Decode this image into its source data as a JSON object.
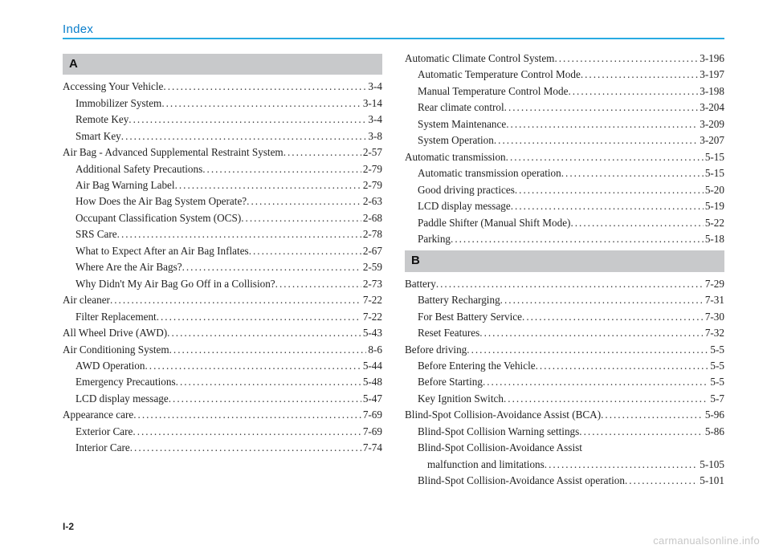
{
  "header": {
    "title": "Index"
  },
  "footer": {
    "page": "I-2"
  },
  "watermark": "carmanualsonline.info",
  "colors": {
    "accent": "#29abe2",
    "header_text": "#0a7ecb",
    "bar_bg": "#c8c9cb",
    "text": "#222222",
    "watermark": "#c7c7c7",
    "background": "#ffffff"
  },
  "sections": {
    "A": {
      "letter": "A",
      "groups": [
        {
          "main": {
            "label": "Accessing Your Vehicle ",
            "pg": "3-4"
          },
          "subs": [
            {
              "label": "Immobilizer System  ",
              "pg": "3-14"
            },
            {
              "label": "Remote Key ",
              "pg": "3-4"
            },
            {
              "label": "Smart Key ",
              "pg": "3-8"
            }
          ]
        },
        {
          "main": {
            "label": "Air Bag - Advanced Supplemental Restraint System",
            "pg": "2-57"
          },
          "subs": [
            {
              "label": "Additional Safety Precautions ",
              "pg": "2-79"
            },
            {
              "label": "Air Bag Warning Label ",
              "pg": "2-79"
            },
            {
              "label": "How Does the Air Bag System Operate? ",
              "pg": "2-63"
            },
            {
              "label": "Occupant Classification System (OCS) ",
              "pg": "2-68"
            },
            {
              "label": "SRS Care ",
              "pg": "2-78"
            },
            {
              "label": "What to Expect After an Air Bag Inflates ",
              "pg": "2-67"
            },
            {
              "label": "Where Are the Air Bags? ",
              "pg": "2-59"
            },
            {
              "label": "Why Didn't My Air Bag Go Off in a Collision? ",
              "pg": "2-73"
            }
          ]
        },
        {
          "main": {
            "label": "Air cleaner",
            "pg": "7-22"
          },
          "subs": [
            {
              "label": "Filter Replacement ",
              "pg": "7-22"
            }
          ]
        },
        {
          "main": {
            "label": "All Wheel Drive (AWD) ",
            "pg": "5-43"
          },
          "subs": []
        },
        {
          "main": {
            "label": "Air Conditioning System ",
            "pg": "8-6"
          },
          "subs": [
            {
              "label": "AWD Operation",
              "pg": "5-44"
            },
            {
              "label": "Emergency Precautions ",
              "pg": "5-48"
            },
            {
              "label": "LCD display message ",
              "pg": "5-47"
            }
          ]
        },
        {
          "main": {
            "label": "Appearance care",
            "pg": "7-69"
          },
          "subs": [
            {
              "label": "Exterior Care ",
              "pg": "7-69"
            },
            {
              "label": "Interior Care ",
              "pg": "7-74"
            }
          ]
        }
      ]
    },
    "A_right": {
      "groups": [
        {
          "main": {
            "label": "Automatic Climate Control System ",
            "pg": "3-196"
          },
          "subs": [
            {
              "label": "Automatic Temperature Control Mode ",
              "pg": "3-197"
            },
            {
              "label": "Manual Temperature Control Mode ",
              "pg": "3-198"
            },
            {
              "label": "Rear climate control ",
              "pg": "3-204"
            },
            {
              "label": "System Maintenance ",
              "pg": "3-209"
            },
            {
              "label": "System Operation ",
              "pg": "3-207"
            }
          ]
        },
        {
          "main": {
            "label": "Automatic transmission ",
            "pg": "5-15"
          },
          "subs": [
            {
              "label": "Automatic transmission operation  ",
              "pg": "5-15"
            },
            {
              "label": "Good driving practices  ",
              "pg": "5-20"
            },
            {
              "label": "LCD display message ",
              "pg": "5-19"
            },
            {
              "label": "Paddle Shifter (Manual Shift Mode)",
              "pg": "5-22"
            },
            {
              "label": "Parking",
              "pg": "5-18"
            }
          ]
        }
      ]
    },
    "B": {
      "letter": "B",
      "groups": [
        {
          "main": {
            "label": "Battery ",
            "pg": "7-29"
          },
          "subs": [
            {
              "label": "Battery Recharging ",
              "pg": "7-31"
            },
            {
              "label": "For Best Battery Service ",
              "pg": "7-30"
            },
            {
              "label": "Reset Features ",
              "pg": "7-32"
            }
          ]
        },
        {
          "main": {
            "label": "Before driving ",
            "pg": "5-5"
          },
          "subs": [
            {
              "label": "Before Entering the Vehicle ",
              "pg": "5-5"
            },
            {
              "label": "Before Starting ",
              "pg": "5-5"
            },
            {
              "label": "Key Ignition Switch ",
              "pg": "5-7"
            }
          ]
        },
        {
          "main": {
            "label": "Blind-Spot Collision-Avoidance Assist (BCA) ",
            "pg": "5-96"
          },
          "subs": [
            {
              "label": "Blind-Spot Collision Warning settings",
              "pg": "5-86"
            },
            {
              "label_line1": "Blind-Spot Collision-Avoidance Assist",
              "label_line2": "malfunction and limitations ",
              "pg": "5-105",
              "twoLine": true
            },
            {
              "label": "Blind-Spot Collision-Avoidance Assist operation ",
              "pg": "5-101"
            }
          ]
        }
      ]
    }
  }
}
